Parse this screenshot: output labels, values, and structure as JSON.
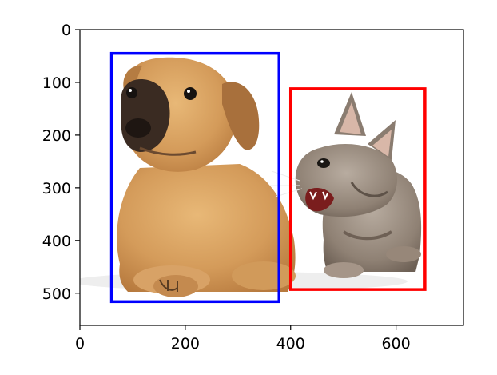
{
  "chart_data": {
    "type": "image-with-bounding-boxes",
    "image": {
      "subject": "puppy and kitten photo",
      "extent": {
        "x": [
          0,
          728
        ],
        "y": [
          0,
          561
        ]
      }
    },
    "xlim": [
      0,
      728
    ],
    "ylim": [
      561,
      0
    ],
    "y_axis_inverted": true,
    "xticks": [
      0,
      200,
      400,
      600
    ],
    "xtick_labels": [
      "0",
      "200",
      "400",
      "600"
    ],
    "yticks": [
      0,
      100,
      200,
      300,
      400,
      500
    ],
    "ytick_labels": [
      "0",
      "100",
      "200",
      "300",
      "400",
      "500"
    ],
    "boxes": [
      {
        "name": "dog",
        "color": "#0000ff",
        "x1": 60,
        "y1": 45,
        "x2": 378,
        "y2": 516
      },
      {
        "name": "cat",
        "color": "#ff0000",
        "x1": 400,
        "y1": 112,
        "x2": 655,
        "y2": 493
      }
    ],
    "grid": false
  }
}
